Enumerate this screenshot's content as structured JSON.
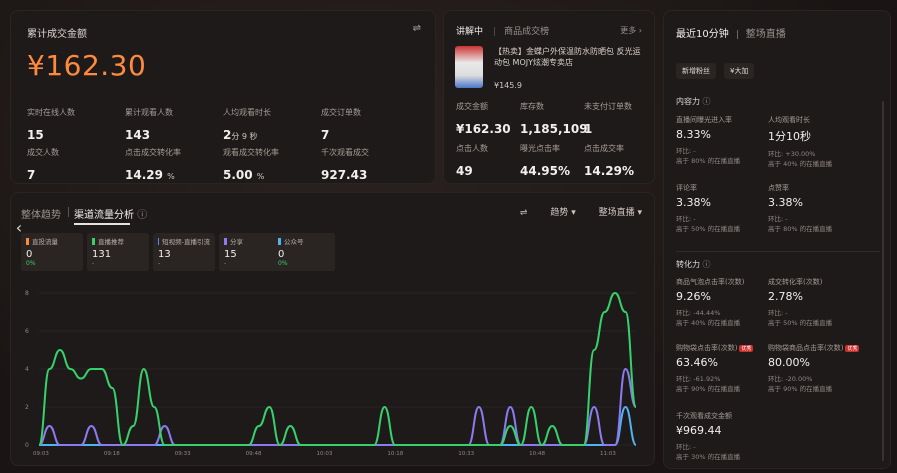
{
  "overview": {
    "title": "累计成交金额",
    "amount": "¥162.30",
    "kpis": [
      {
        "label": "实时在线人数",
        "value": "15",
        "unit": ""
      },
      {
        "label": "累计观看人数",
        "value": "143",
        "unit": ""
      },
      {
        "label": "人均观看时长",
        "value": "2",
        "unit": "分 9 秒"
      },
      {
        "label": "成交订单数",
        "value": "7",
        "unit": ""
      },
      {
        "label": "成交人数",
        "value": "7",
        "unit": ""
      },
      {
        "label": "点击成交转化率",
        "value": "14.29",
        "unit": "%"
      },
      {
        "label": "观看成交转化率",
        "value": "5.00",
        "unit": "%"
      },
      {
        "label": "千次观看成交",
        "value": "927.43",
        "unit": ""
      }
    ]
  },
  "product": {
    "tab_active": "讲解中",
    "tab_other": "商品成交榜",
    "more": "更多",
    "name": "【热卖】金蝶户外保温防水防晒包 反光运动包 MOJY炫潮专卖店",
    "price": "¥145.9",
    "stats": [
      {
        "label": "成交金额",
        "value": "¥162.30"
      },
      {
        "label": "库存数",
        "value": "1,185,109"
      },
      {
        "label": "未支付订单数",
        "value": "1"
      },
      {
        "label": "点击人数",
        "value": "49"
      },
      {
        "label": "曝光点击率",
        "value": "44.95%"
      },
      {
        "label": "点击成交率",
        "value": "14.29%"
      }
    ]
  },
  "trend": {
    "tab1": "整体趋势",
    "tab2": "渠道流量分析",
    "ctrl1": "趋势",
    "ctrl2": "整场直播",
    "legend": [
      {
        "name": "直投流量",
        "value": "0",
        "pct": "0%",
        "color": "#ff8a3d"
      },
      {
        "name": "直播推荐",
        "value": "131",
        "pct": "-",
        "color": "#37d16b"
      },
      {
        "name": "短视频-直播引流",
        "value": "13",
        "pct": "-",
        "color": "#4e8ff0"
      },
      {
        "name": "分享",
        "value": "15",
        "pct": "-",
        "color": "#8a7cf0"
      },
      {
        "name": "公众号",
        "value": "0",
        "pct": "0%",
        "color": "#4eb3f0"
      }
    ]
  },
  "chart_data": {
    "type": "line",
    "ylim": [
      0,
      8
    ],
    "yticks": [
      "0",
      "2",
      "4",
      "6",
      "8"
    ],
    "xticks": [
      "09:03",
      "09:18",
      "09:33",
      "09:48",
      "10:03",
      "10:18",
      "10:33",
      "10:48",
      "11:03"
    ],
    "series": [
      {
        "values": [
          0,
          4,
          5,
          4,
          3.5,
          4,
          4,
          3,
          0,
          1,
          4,
          2,
          0,
          0,
          0,
          0,
          0,
          0,
          0,
          0,
          0,
          1,
          2,
          0,
          1,
          0,
          0,
          0,
          0,
          0,
          0,
          0,
          0,
          2,
          0,
          0,
          0,
          0,
          0,
          0,
          0,
          0,
          0,
          0,
          0,
          1,
          0,
          2,
          0,
          1,
          0,
          0,
          0,
          5,
          7,
          8,
          7,
          2
        ]
      },
      {
        "values": [
          0,
          1,
          0,
          0,
          0,
          1,
          0,
          0,
          0,
          0,
          0,
          0,
          1,
          0,
          0,
          0,
          0,
          0,
          0,
          0,
          0,
          0,
          0,
          0,
          0,
          0,
          0,
          0,
          0,
          0,
          0,
          0,
          0,
          0,
          0,
          0,
          0,
          0,
          0,
          0,
          0,
          0,
          2,
          0,
          0,
          2,
          0,
          0,
          0,
          0,
          0,
          0,
          0,
          2,
          0,
          0,
          4,
          2
        ]
      },
      {
        "values": [
          0,
          0,
          0,
          0,
          0,
          0,
          0,
          0,
          0,
          0,
          0,
          0,
          0,
          0,
          0,
          0,
          0,
          0,
          0,
          0,
          0,
          0,
          0,
          0,
          0,
          0,
          0,
          0,
          0,
          0,
          0,
          0,
          0,
          0,
          0,
          0,
          0,
          0,
          0,
          0,
          0,
          0,
          0,
          0,
          0,
          0,
          0,
          0,
          0,
          0,
          0,
          0,
          0,
          0,
          0,
          0,
          2,
          0
        ]
      }
    ]
  },
  "realtime": {
    "tab1": "最近10分钟",
    "tab2": "整场直播",
    "btn1": "新增粉丝",
    "btn2": "¥大加",
    "sect1": "内容力",
    "sect2": "转化力",
    "metrics1": [
      {
        "label": "直播间曝光进入率",
        "value": "8.33%",
        "sub": "环比: -",
        "sub2": "高于 80% 的在播直播"
      },
      {
        "label": "人均观看时长",
        "value": "1分10秒",
        "sub": "环比: +30.00%",
        "sub2": "高于 40% 的在播直播"
      },
      {
        "label": "评论率",
        "value": "3.38%",
        "sub": "环比: -",
        "sub2": "高于 50% 的在播直播"
      },
      {
        "label": "点赞率",
        "value": "3.38%",
        "sub": "环比: -",
        "sub2": "高于 80% 的在播直播"
      }
    ],
    "metrics2": [
      {
        "label": "商品气泡点击率(次数)",
        "value": "9.26%",
        "sub": "环比: -44.44%",
        "sub2": "高于 40% 的在播直播"
      },
      {
        "label": "成交转化率(次数)",
        "value": "2.78%",
        "sub": "环比: -",
        "sub2": "高于 50% 的在播直播"
      },
      {
        "label": "购物袋点击率(次数)",
        "value": "63.46%",
        "sub": "环比: -61.92%",
        "sub2": "高于 90% 的在播直播",
        "badge": "优秀"
      },
      {
        "label": "购物袋商品点击率(次数)",
        "value": "80.00%",
        "sub": "环比: -20.00%",
        "sub2": "高于 90% 的在播直播",
        "badge": "优秀"
      },
      {
        "label": "千次观看成交金额",
        "value": "¥969.44",
        "sub": "环比: -",
        "sub2": "高于 30% 的在播直播"
      }
    ]
  }
}
